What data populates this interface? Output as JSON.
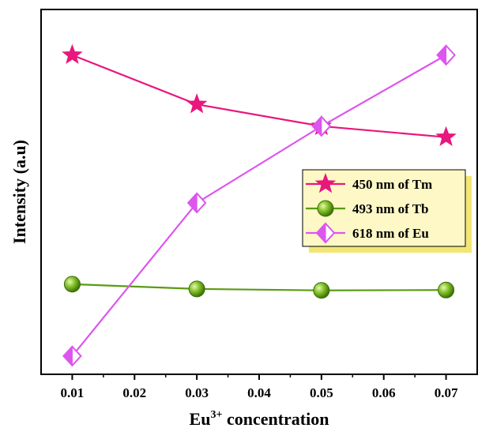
{
  "chart_data": {
    "type": "line",
    "x": [
      0.01,
      0.03,
      0.05,
      0.07
    ],
    "xlim": [
      0.005,
      0.075
    ],
    "ylim": [
      0,
      100
    ],
    "xticks": [
      "0.01",
      "0.02",
      "0.03",
      "0.04",
      "0.05",
      "0.06",
      "0.07"
    ],
    "xlabel": {
      "base": "Eu",
      "sup": "3+",
      "rest": " concentration"
    },
    "ylabel": "Intensity (a.u)",
    "y_tick_labels_shown": false,
    "grid": false,
    "legend_position": "right",
    "legend_background": "#fdf8c6",
    "legend_shadow": "#f2e675",
    "series": [
      {
        "name": "450 nm of Tm",
        "values": [
          87.5,
          74.0,
          68.0,
          65.0
        ],
        "color": "#e8177d",
        "marker": "star"
      },
      {
        "name": "493 nm of Tb",
        "values": [
          24.7,
          23.4,
          23.0,
          23.1
        ],
        "color": "#5a9b12",
        "marker": "sphere"
      },
      {
        "name": "618 nm of Eu",
        "values": [
          5.0,
          47.0,
          68.0,
          87.5
        ],
        "color": "#dd55ee",
        "marker": "half-diamond"
      }
    ]
  }
}
